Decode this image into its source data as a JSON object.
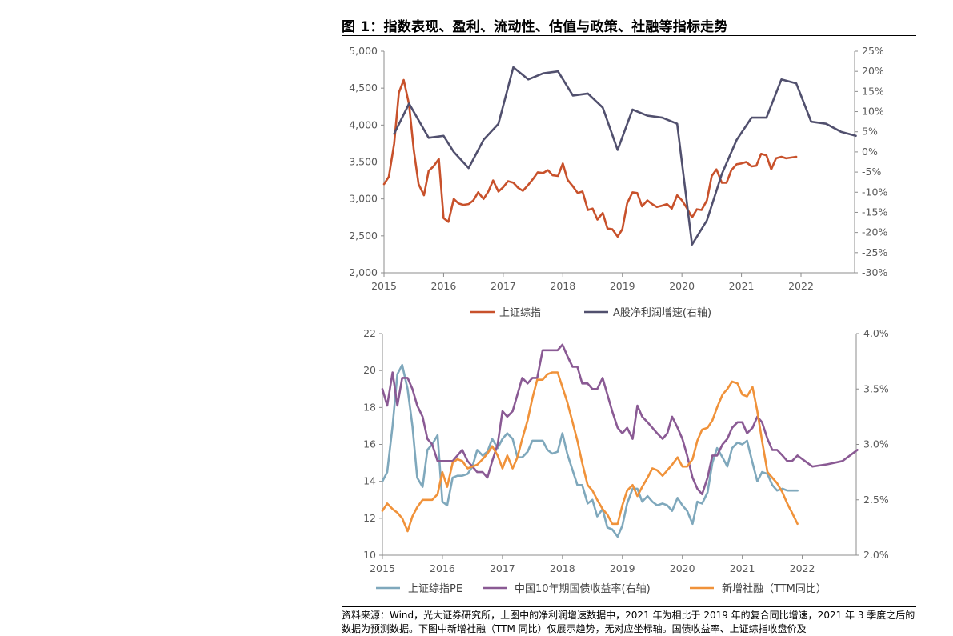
{
  "figure": {
    "title": "图 1：指数表现、盈利、流动性、估值与政策、社融等指标走势",
    "source_note": "资料来源：Wind，光大证券研究所，上图中的净利润增速数据中，2021 年为相比于 2019 年的复合同比增速，2021 年 3 季度之后的数据为预测数据。下图中新增社融（TTM 同比）仅展示趋势，无对应坐标轴。国债收益率、上证综指收盘价及"
  },
  "chart_data": [
    {
      "type": "line",
      "x_axis": {
        "ticks": [
          "2015",
          "2016",
          "2017",
          "2018",
          "2019",
          "2020",
          "2021",
          "2022"
        ],
        "range": [
          2015.0,
          2022.9
        ]
      },
      "y_left": {
        "range": [
          2000,
          5000
        ],
        "ticks": [
          "2,000",
          "2,500",
          "3,000",
          "3,500",
          "4,000",
          "4,500",
          "5,000"
        ]
      },
      "y_right": {
        "range": [
          -30,
          25
        ],
        "ticks": [
          "-30%",
          "-25%",
          "-20%",
          "-15%",
          "-10%",
          "-5%",
          "0%",
          "5%",
          "10%",
          "15%",
          "20%",
          "25%"
        ]
      },
      "legend": {
        "position": "bottom"
      },
      "series": [
        {
          "name": "上证综指",
          "axis": "left",
          "color": "#c8512b",
          "x": [
            2015.0,
            2015.08,
            2015.17,
            2015.25,
            2015.33,
            2015.42,
            2015.5,
            2015.58,
            2015.67,
            2015.75,
            2015.83,
            2015.92,
            2016.0,
            2016.08,
            2016.17,
            2016.25,
            2016.33,
            2016.42,
            2016.5,
            2016.58,
            2016.67,
            2016.75,
            2016.83,
            2016.92,
            2017.0,
            2017.08,
            2017.17,
            2017.25,
            2017.33,
            2017.42,
            2017.5,
            2017.58,
            2017.67,
            2017.75,
            2017.83,
            2017.92,
            2018.0,
            2018.08,
            2018.17,
            2018.25,
            2018.33,
            2018.42,
            2018.5,
            2018.58,
            2018.67,
            2018.75,
            2018.83,
            2018.92,
            2019.0,
            2019.08,
            2019.17,
            2019.25,
            2019.33,
            2019.42,
            2019.5,
            2019.58,
            2019.67,
            2019.75,
            2019.83,
            2019.92,
            2020.0,
            2020.08,
            2020.17,
            2020.25,
            2020.33,
            2020.42,
            2020.5,
            2020.58,
            2020.67,
            2020.75,
            2020.83,
            2020.92,
            2021.0,
            2021.08,
            2021.17,
            2021.25,
            2021.33,
            2021.42,
            2021.5,
            2021.58,
            2021.67,
            2021.75,
            2021.83,
            2021.92
          ],
          "values": [
            3200,
            3300,
            3750,
            4440,
            4610,
            4280,
            3660,
            3200,
            3050,
            3380,
            3440,
            3540,
            2740,
            2690,
            3000,
            2940,
            2920,
            2930,
            2980,
            3090,
            3000,
            3100,
            3250,
            3100,
            3160,
            3240,
            3220,
            3150,
            3110,
            3190,
            3270,
            3360,
            3350,
            3390,
            3320,
            3310,
            3480,
            3260,
            3170,
            3080,
            3100,
            2850,
            2870,
            2720,
            2810,
            2600,
            2590,
            2490,
            2590,
            2940,
            3090,
            3080,
            2900,
            2980,
            2930,
            2890,
            2910,
            2930,
            2870,
            3050,
            2980,
            2880,
            2750,
            2860,
            2850,
            2980,
            3310,
            3400,
            3220,
            3220,
            3390,
            3470,
            3480,
            3500,
            3440,
            3450,
            3610,
            3590,
            3400,
            3550,
            3570,
            3550,
            3560,
            3570
          ]
        },
        {
          "name": "A股净利润增速(右轴)",
          "axis": "right",
          "color": "#51506e",
          "x": [
            2015.17,
            2015.42,
            2015.75,
            2016.0,
            2016.17,
            2016.42,
            2016.67,
            2016.92,
            2017.17,
            2017.42,
            2017.67,
            2017.92,
            2018.17,
            2018.42,
            2018.67,
            2018.92,
            2019.17,
            2019.42,
            2019.67,
            2019.92,
            2020.17,
            2020.42,
            2020.67,
            2020.92,
            2021.17,
            2021.42,
            2021.67,
            2021.92,
            2022.17,
            2022.42,
            2022.67,
            2022.92
          ],
          "values": [
            4.5,
            12,
            3.5,
            4,
            0,
            -4,
            3,
            7,
            21,
            18,
            19.5,
            20,
            14,
            14.5,
            11,
            0.5,
            10.5,
            9,
            8.5,
            7,
            -23,
            -17,
            -5.5,
            3,
            8.5,
            8.5,
            18,
            17,
            7.5,
            7,
            5,
            4
          ]
        }
      ]
    },
    {
      "type": "line",
      "x_axis": {
        "ticks": [
          "2015",
          "2016",
          "2017",
          "2018",
          "2019",
          "2020",
          "2021",
          "2022"
        ],
        "range": [
          2015.0,
          2022.9
        ]
      },
      "y_left": {
        "range": [
          10,
          22
        ],
        "ticks": [
          "10",
          "12",
          "14",
          "16",
          "18",
          "20",
          "22"
        ]
      },
      "y_right": {
        "range": [
          2.0,
          4.0
        ],
        "ticks": [
          "2.0%",
          "2.5%",
          "3.0%",
          "3.5%",
          "4.0%"
        ]
      },
      "legend": {
        "position": "bottom"
      },
      "series": [
        {
          "name": "上证综指PE",
          "axis": "left",
          "color": "#7fa8bc",
          "x": [
            2015.0,
            2015.08,
            2015.17,
            2015.25,
            2015.33,
            2015.42,
            2015.5,
            2015.58,
            2015.67,
            2015.75,
            2015.83,
            2015.92,
            2016.0,
            2016.08,
            2016.17,
            2016.25,
            2016.33,
            2016.42,
            2016.5,
            2016.58,
            2016.67,
            2016.75,
            2016.83,
            2016.92,
            2017.0,
            2017.08,
            2017.17,
            2017.25,
            2017.33,
            2017.42,
            2017.5,
            2017.58,
            2017.67,
            2017.75,
            2017.83,
            2017.92,
            2018.0,
            2018.08,
            2018.17,
            2018.25,
            2018.33,
            2018.42,
            2018.5,
            2018.58,
            2018.67,
            2018.75,
            2018.83,
            2018.92,
            2019.0,
            2019.08,
            2019.17,
            2019.25,
            2019.33,
            2019.42,
            2019.5,
            2019.58,
            2019.67,
            2019.75,
            2019.83,
            2019.92,
            2020.0,
            2020.08,
            2020.17,
            2020.25,
            2020.33,
            2020.42,
            2020.5,
            2020.58,
            2020.67,
            2020.75,
            2020.83,
            2020.92,
            2021.0,
            2021.08,
            2021.17,
            2021.25,
            2021.33,
            2021.42,
            2021.5,
            2021.58,
            2021.67,
            2021.75,
            2021.83,
            2021.92
          ],
          "values": [
            14.0,
            14.5,
            17.0,
            19.8,
            20.3,
            19.0,
            17.0,
            14.2,
            13.7,
            15.7,
            16.0,
            16.5,
            12.9,
            12.7,
            14.2,
            14.3,
            14.3,
            14.4,
            14.8,
            15.7,
            15.4,
            15.6,
            16.3,
            15.8,
            16.3,
            16.6,
            16.3,
            15.3,
            15.3,
            15.6,
            16.2,
            16.2,
            16.2,
            15.7,
            15.5,
            15.6,
            16.6,
            15.5,
            14.6,
            13.8,
            13.8,
            12.8,
            13.0,
            12.1,
            12.5,
            11.5,
            11.4,
            11.0,
            11.6,
            12.8,
            13.6,
            13.6,
            12.9,
            13.2,
            12.9,
            12.7,
            12.8,
            12.7,
            12.4,
            13.1,
            12.7,
            12.4,
            11.7,
            12.9,
            12.8,
            13.4,
            15.0,
            15.8,
            15.3,
            14.8,
            15.8,
            16.1,
            16.0,
            16.2,
            15.0,
            14.0,
            14.5,
            14.4,
            13.8,
            13.5,
            13.6,
            13.5,
            13.5,
            13.5
          ]
        },
        {
          "name": "中国10年期国债收益率(右轴)",
          "axis": "right",
          "color": "#8a5a94",
          "x": [
            2015.0,
            2015.08,
            2015.17,
            2015.25,
            2015.33,
            2015.42,
            2015.5,
            2015.58,
            2015.67,
            2015.75,
            2015.83,
            2015.92,
            2016.0,
            2016.08,
            2016.17,
            2016.25,
            2016.33,
            2016.42,
            2016.5,
            2016.58,
            2016.67,
            2016.75,
            2016.83,
            2016.92,
            2017.0,
            2017.08,
            2017.17,
            2017.25,
            2017.33,
            2017.42,
            2017.5,
            2017.58,
            2017.67,
            2017.75,
            2017.83,
            2017.92,
            2018.0,
            2018.08,
            2018.17,
            2018.25,
            2018.33,
            2018.42,
            2018.5,
            2018.58,
            2018.67,
            2018.75,
            2018.83,
            2018.92,
            2019.0,
            2019.08,
            2019.17,
            2019.25,
            2019.33,
            2019.42,
            2019.5,
            2019.58,
            2019.67,
            2019.75,
            2019.83,
            2019.92,
            2020.0,
            2020.08,
            2020.17,
            2020.25,
            2020.33,
            2020.42,
            2020.5,
            2020.58,
            2020.67,
            2020.75,
            2020.83,
            2020.92,
            2021.0,
            2021.08,
            2021.17,
            2021.25,
            2021.33,
            2021.42,
            2021.5,
            2021.58,
            2021.67,
            2021.75,
            2021.83,
            2021.92,
            2022.17,
            2022.42,
            2022.67,
            2022.92
          ],
          "values": [
            3.5,
            3.35,
            3.65,
            3.35,
            3.6,
            3.6,
            3.5,
            3.35,
            3.25,
            3.05,
            3.0,
            2.85,
            2.85,
            2.85,
            2.85,
            2.9,
            2.95,
            2.85,
            2.8,
            2.75,
            2.75,
            2.7,
            2.85,
            3.0,
            3.3,
            3.25,
            3.3,
            3.45,
            3.6,
            3.55,
            3.6,
            3.6,
            3.85,
            3.85,
            3.85,
            3.85,
            3.9,
            3.8,
            3.7,
            3.7,
            3.55,
            3.55,
            3.5,
            3.5,
            3.6,
            3.45,
            3.3,
            3.15,
            3.1,
            3.15,
            3.05,
            3.35,
            3.25,
            3.2,
            3.15,
            3.1,
            3.05,
            3.1,
            3.25,
            3.15,
            3.05,
            2.9,
            2.7,
            2.6,
            2.55,
            2.7,
            2.9,
            2.9,
            3.0,
            3.05,
            3.15,
            3.2,
            3.2,
            3.1,
            3.15,
            3.25,
            3.2,
            3.05,
            2.95,
            2.95,
            2.9,
            2.85,
            2.85,
            2.9,
            2.8,
            2.82,
            2.85,
            2.95
          ]
        },
        {
          "name": "新增社融（TTM同比）",
          "axis": "none",
          "color": "#f0923a",
          "x": [
            2015.0,
            2015.08,
            2015.17,
            2015.25,
            2015.33,
            2015.42,
            2015.5,
            2015.58,
            2015.67,
            2015.75,
            2015.83,
            2015.92,
            2016.0,
            2016.08,
            2016.17,
            2016.25,
            2016.33,
            2016.42,
            2016.5,
            2016.58,
            2016.67,
            2016.75,
            2016.83,
            2016.92,
            2017.0,
            2017.08,
            2017.17,
            2017.25,
            2017.33,
            2017.42,
            2017.5,
            2017.58,
            2017.67,
            2017.75,
            2017.83,
            2017.92,
            2018.0,
            2018.08,
            2018.17,
            2018.25,
            2018.33,
            2018.42,
            2018.5,
            2018.58,
            2018.67,
            2018.75,
            2018.83,
            2018.92,
            2019.0,
            2019.08,
            2019.17,
            2019.25,
            2019.33,
            2019.42,
            2019.5,
            2019.58,
            2019.67,
            2019.75,
            2019.83,
            2019.92,
            2020.0,
            2020.08,
            2020.17,
            2020.25,
            2020.33,
            2020.42,
            2020.5,
            2020.58,
            2020.67,
            2020.75,
            2020.83,
            2020.92,
            2021.0,
            2021.08,
            2021.17,
            2021.25,
            2021.33,
            2021.42,
            2021.5,
            2021.58,
            2021.67,
            2021.75,
            2021.83,
            2021.92
          ],
          "values": [
            12.4,
            12.8,
            12.5,
            12.3,
            12.0,
            11.3,
            12.1,
            12.6,
            13.0,
            13.0,
            13.0,
            13.3,
            14.5,
            13.7,
            15.0,
            15.2,
            15.1,
            14.7,
            14.8,
            14.9,
            15.2,
            15.5,
            15.9,
            15.4,
            14.7,
            15.4,
            14.7,
            15.3,
            16.3,
            17.3,
            18.5,
            19.5,
            19.5,
            19.8,
            19.9,
            19.9,
            19.1,
            18.3,
            17.2,
            16.2,
            15.0,
            13.8,
            13.5,
            13.0,
            12.5,
            12.2,
            11.7,
            11.7,
            12.7,
            13.5,
            13.8,
            13.2,
            13.7,
            14.2,
            14.7,
            14.6,
            14.3,
            14.6,
            14.9,
            15.3,
            14.8,
            14.8,
            15.2,
            16.2,
            16.8,
            16.9,
            17.3,
            18.0,
            18.7,
            19.0,
            19.4,
            19.3,
            18.7,
            18.6,
            19.1,
            17.8,
            16.2,
            14.5,
            14.2,
            13.9,
            13.4,
            12.8,
            12.3,
            11.7
          ]
        }
      ]
    }
  ]
}
